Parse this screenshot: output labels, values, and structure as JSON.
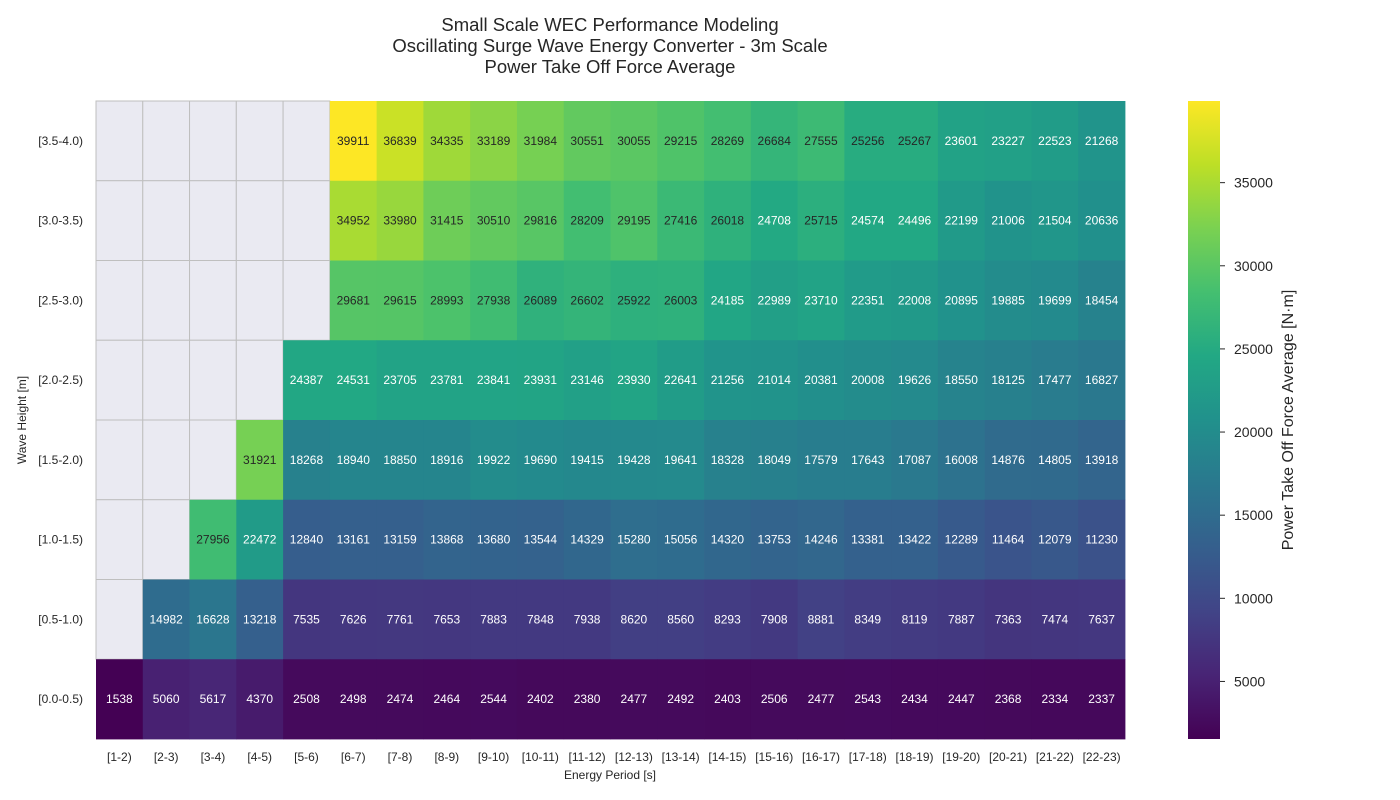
{
  "chart_data": {
    "type": "heatmap",
    "title_lines": [
      "Small Scale WEC Performance Modeling",
      "Oscillating Surge Wave Energy Converter - 3m Scale",
      "Power Take Off Force Average"
    ],
    "xlabel": "Energy Period [s]",
    "ylabel": "Wave Height [m]",
    "colorbar_label": "Power Take Off Force Average [N·m]",
    "colorbar_ticks": [
      5000,
      10000,
      15000,
      20000,
      25000,
      30000,
      35000
    ],
    "colormap": "viridis",
    "vmin": 1538,
    "vmax": 39911,
    "missing_color": "#eaeaf2",
    "x_categories": [
      "[1-2)",
      "[2-3)",
      "[3-4)",
      "[4-5)",
      "[5-6)",
      "[6-7)",
      "[7-8)",
      "[8-9)",
      "[9-10)",
      "[10-11)",
      "[11-12)",
      "[12-13)",
      "[13-14)",
      "[14-15)",
      "[15-16)",
      "[16-17)",
      "[17-18)",
      "[18-19)",
      "[19-20)",
      "[20-21)",
      "[21-22)",
      "[22-23)"
    ],
    "y_categories": [
      "[3.5-4.0)",
      "[3.0-3.5)",
      "[2.5-3.0)",
      "[2.0-2.5)",
      "[1.5-2.0)",
      "[1.0-1.5)",
      "[0.5-1.0)",
      "[0.0-0.5)"
    ],
    "values": [
      [
        null,
        null,
        null,
        null,
        null,
        39911,
        36839,
        34335,
        33189,
        31984,
        30551,
        30055,
        29215,
        28269,
        26684,
        27555,
        25256,
        25267,
        23601,
        23227,
        22523,
        21268
      ],
      [
        null,
        null,
        null,
        null,
        null,
        34952,
        33980,
        31415,
        30510,
        29816,
        28209,
        29195,
        27416,
        26018,
        24708,
        25715,
        24574,
        24496,
        22199,
        21006,
        21504,
        20636
      ],
      [
        null,
        null,
        null,
        null,
        null,
        29681,
        29615,
        28993,
        27938,
        26089,
        26602,
        25922,
        26003,
        24185,
        22989,
        23710,
        22351,
        22008,
        20895,
        19885,
        19699,
        18454
      ],
      [
        null,
        null,
        null,
        null,
        24387,
        24531,
        23705,
        23781,
        23841,
        23931,
        23146,
        23930,
        22641,
        21256,
        21014,
        20381,
        20008,
        19626,
        18550,
        18125,
        17477,
        16827
      ],
      [
        null,
        null,
        null,
        31921,
        18268,
        18940,
        18850,
        18916,
        19922,
        19690,
        19415,
        19428,
        19641,
        18328,
        18049,
        17579,
        17643,
        17087,
        16008,
        14876,
        14805,
        13918
      ],
      [
        null,
        null,
        27956,
        22472,
        12840,
        13161,
        13159,
        13868,
        13680,
        13544,
        14329,
        15280,
        15056,
        14320,
        13753,
        14246,
        13381,
        13422,
        12289,
        11464,
        12079,
        11230
      ],
      [
        null,
        14982,
        16628,
        13218,
        7535,
        7626,
        7761,
        7653,
        7883,
        7848,
        7938,
        8620,
        8560,
        8293,
        7908,
        8881,
        8349,
        8119,
        7887,
        7363,
        7474,
        7637
      ],
      [
        1538,
        5060,
        5617,
        4370,
        2508,
        2498,
        2474,
        2464,
        2544,
        2402,
        2380,
        2477,
        2492,
        2403,
        2506,
        2477,
        2543,
        2434,
        2447,
        2368,
        2334,
        2337
      ]
    ]
  }
}
